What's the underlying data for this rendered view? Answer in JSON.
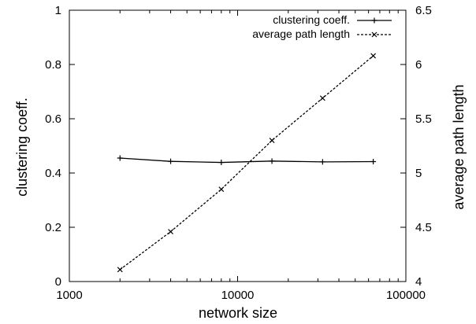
{
  "chart_data": {
    "type": "line",
    "xlabel": "network size",
    "ylabel_left": "clustering coeff.",
    "ylabel_right": "average path length",
    "x_scale": "log",
    "xlim": [
      1000,
      100000
    ],
    "ylim_left": [
      0,
      1
    ],
    "ylim_right": [
      4,
      6.5
    ],
    "grid": false,
    "legend_position": "top-right",
    "x_ticks": [
      {
        "value": 1000,
        "label": "1000"
      },
      {
        "value": 10000,
        "label": "10000"
      },
      {
        "value": 100000,
        "label": "100000"
      }
    ],
    "y_left_ticks": [
      {
        "value": 0,
        "label": "0"
      },
      {
        "value": 0.2,
        "label": "0.2"
      },
      {
        "value": 0.4,
        "label": "0.4"
      },
      {
        "value": 0.6,
        "label": "0.6"
      },
      {
        "value": 0.8,
        "label": "0.8"
      },
      {
        "value": 1,
        "label": "1"
      }
    ],
    "y_right_ticks": [
      {
        "value": 4,
        "label": "4"
      },
      {
        "value": 4.5,
        "label": "4.5"
      },
      {
        "value": 5,
        "label": "5"
      },
      {
        "value": 5.5,
        "label": "5.5"
      },
      {
        "value": 6,
        "label": "6"
      },
      {
        "value": 6.5,
        "label": "6.5"
      }
    ],
    "series": [
      {
        "name": "clustering coeff.",
        "axis": "left",
        "marker": "plus",
        "line_style": "solid",
        "color": "#000000",
        "x": [
          2000,
          4000,
          8000,
          16000,
          32000,
          64000
        ],
        "y": [
          0.455,
          0.443,
          0.439,
          0.444,
          0.441,
          0.442
        ]
      },
      {
        "name": "average path length",
        "axis": "right",
        "marker": "cross",
        "line_style": "dashed",
        "color": "#000000",
        "x": [
          2000,
          4000,
          8000,
          16000,
          32000,
          64000
        ],
        "y": [
          4.11,
          4.46,
          4.85,
          5.3,
          5.69,
          6.08
        ]
      }
    ]
  }
}
